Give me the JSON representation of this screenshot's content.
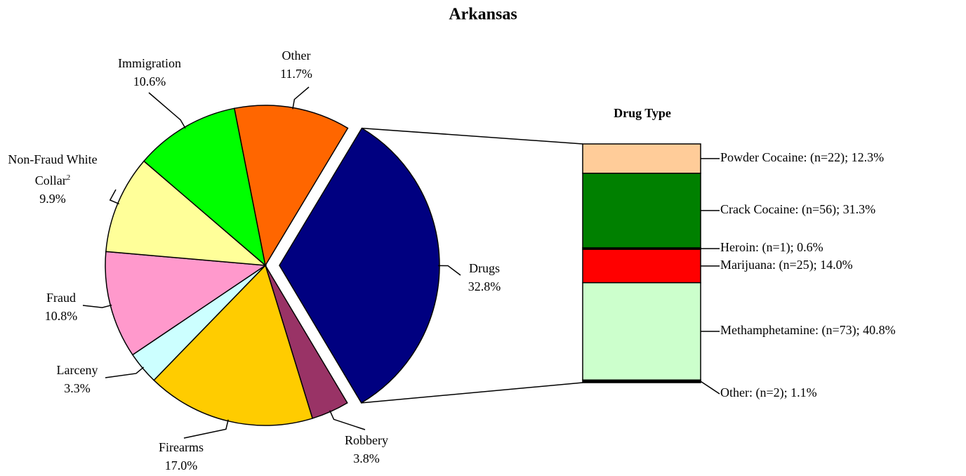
{
  "chart_data": {
    "type": "pie-of-bar",
    "title": "Arkansas",
    "pie": {
      "categories": [
        "Drugs",
        "Robbery",
        "Firearms",
        "Larceny",
        "Fraud",
        "Non-Fraud White Collar",
        "Immigration",
        "Other"
      ],
      "label_footnotes": [
        null,
        null,
        null,
        null,
        null,
        "2",
        null,
        null
      ],
      "values": [
        32.8,
        3.8,
        17.0,
        3.3,
        10.8,
        9.9,
        10.6,
        11.7
      ],
      "value_labels": [
        "32.8%",
        "3.8%",
        "17.0%",
        "3.3%",
        "10.8%",
        "9.9%",
        "10.6%",
        "11.7%"
      ],
      "colors": [
        "#000080",
        "#993366",
        "#FFCC00",
        "#CCFFFF",
        "#FF99CC",
        "#FFFF99",
        "#00FF00",
        "#FF6600"
      ],
      "exploded": 0
    },
    "bar": {
      "title": "Drug Type",
      "counts": [
        22,
        56,
        1,
        25,
        73,
        2
      ],
      "values": [
        12.3,
        31.3,
        0.6,
        14.0,
        40.8,
        1.1
      ],
      "value_labels": [
        "Powder Cocaine: (n=22); 12.3%",
        "Crack Cocaine: (n=56); 31.3%",
        "Heroin: (n=1); 0.6%",
        "Marijuana: (n=25); 14.0%",
        "Methamphetamine: (n=73); 40.8%",
        "Other: (n=2); 1.1%"
      ],
      "colors": [
        "#FFCC99",
        "#008000",
        "#000000",
        "#FF0000",
        "#CCFFCC",
        "#000000"
      ]
    }
  }
}
